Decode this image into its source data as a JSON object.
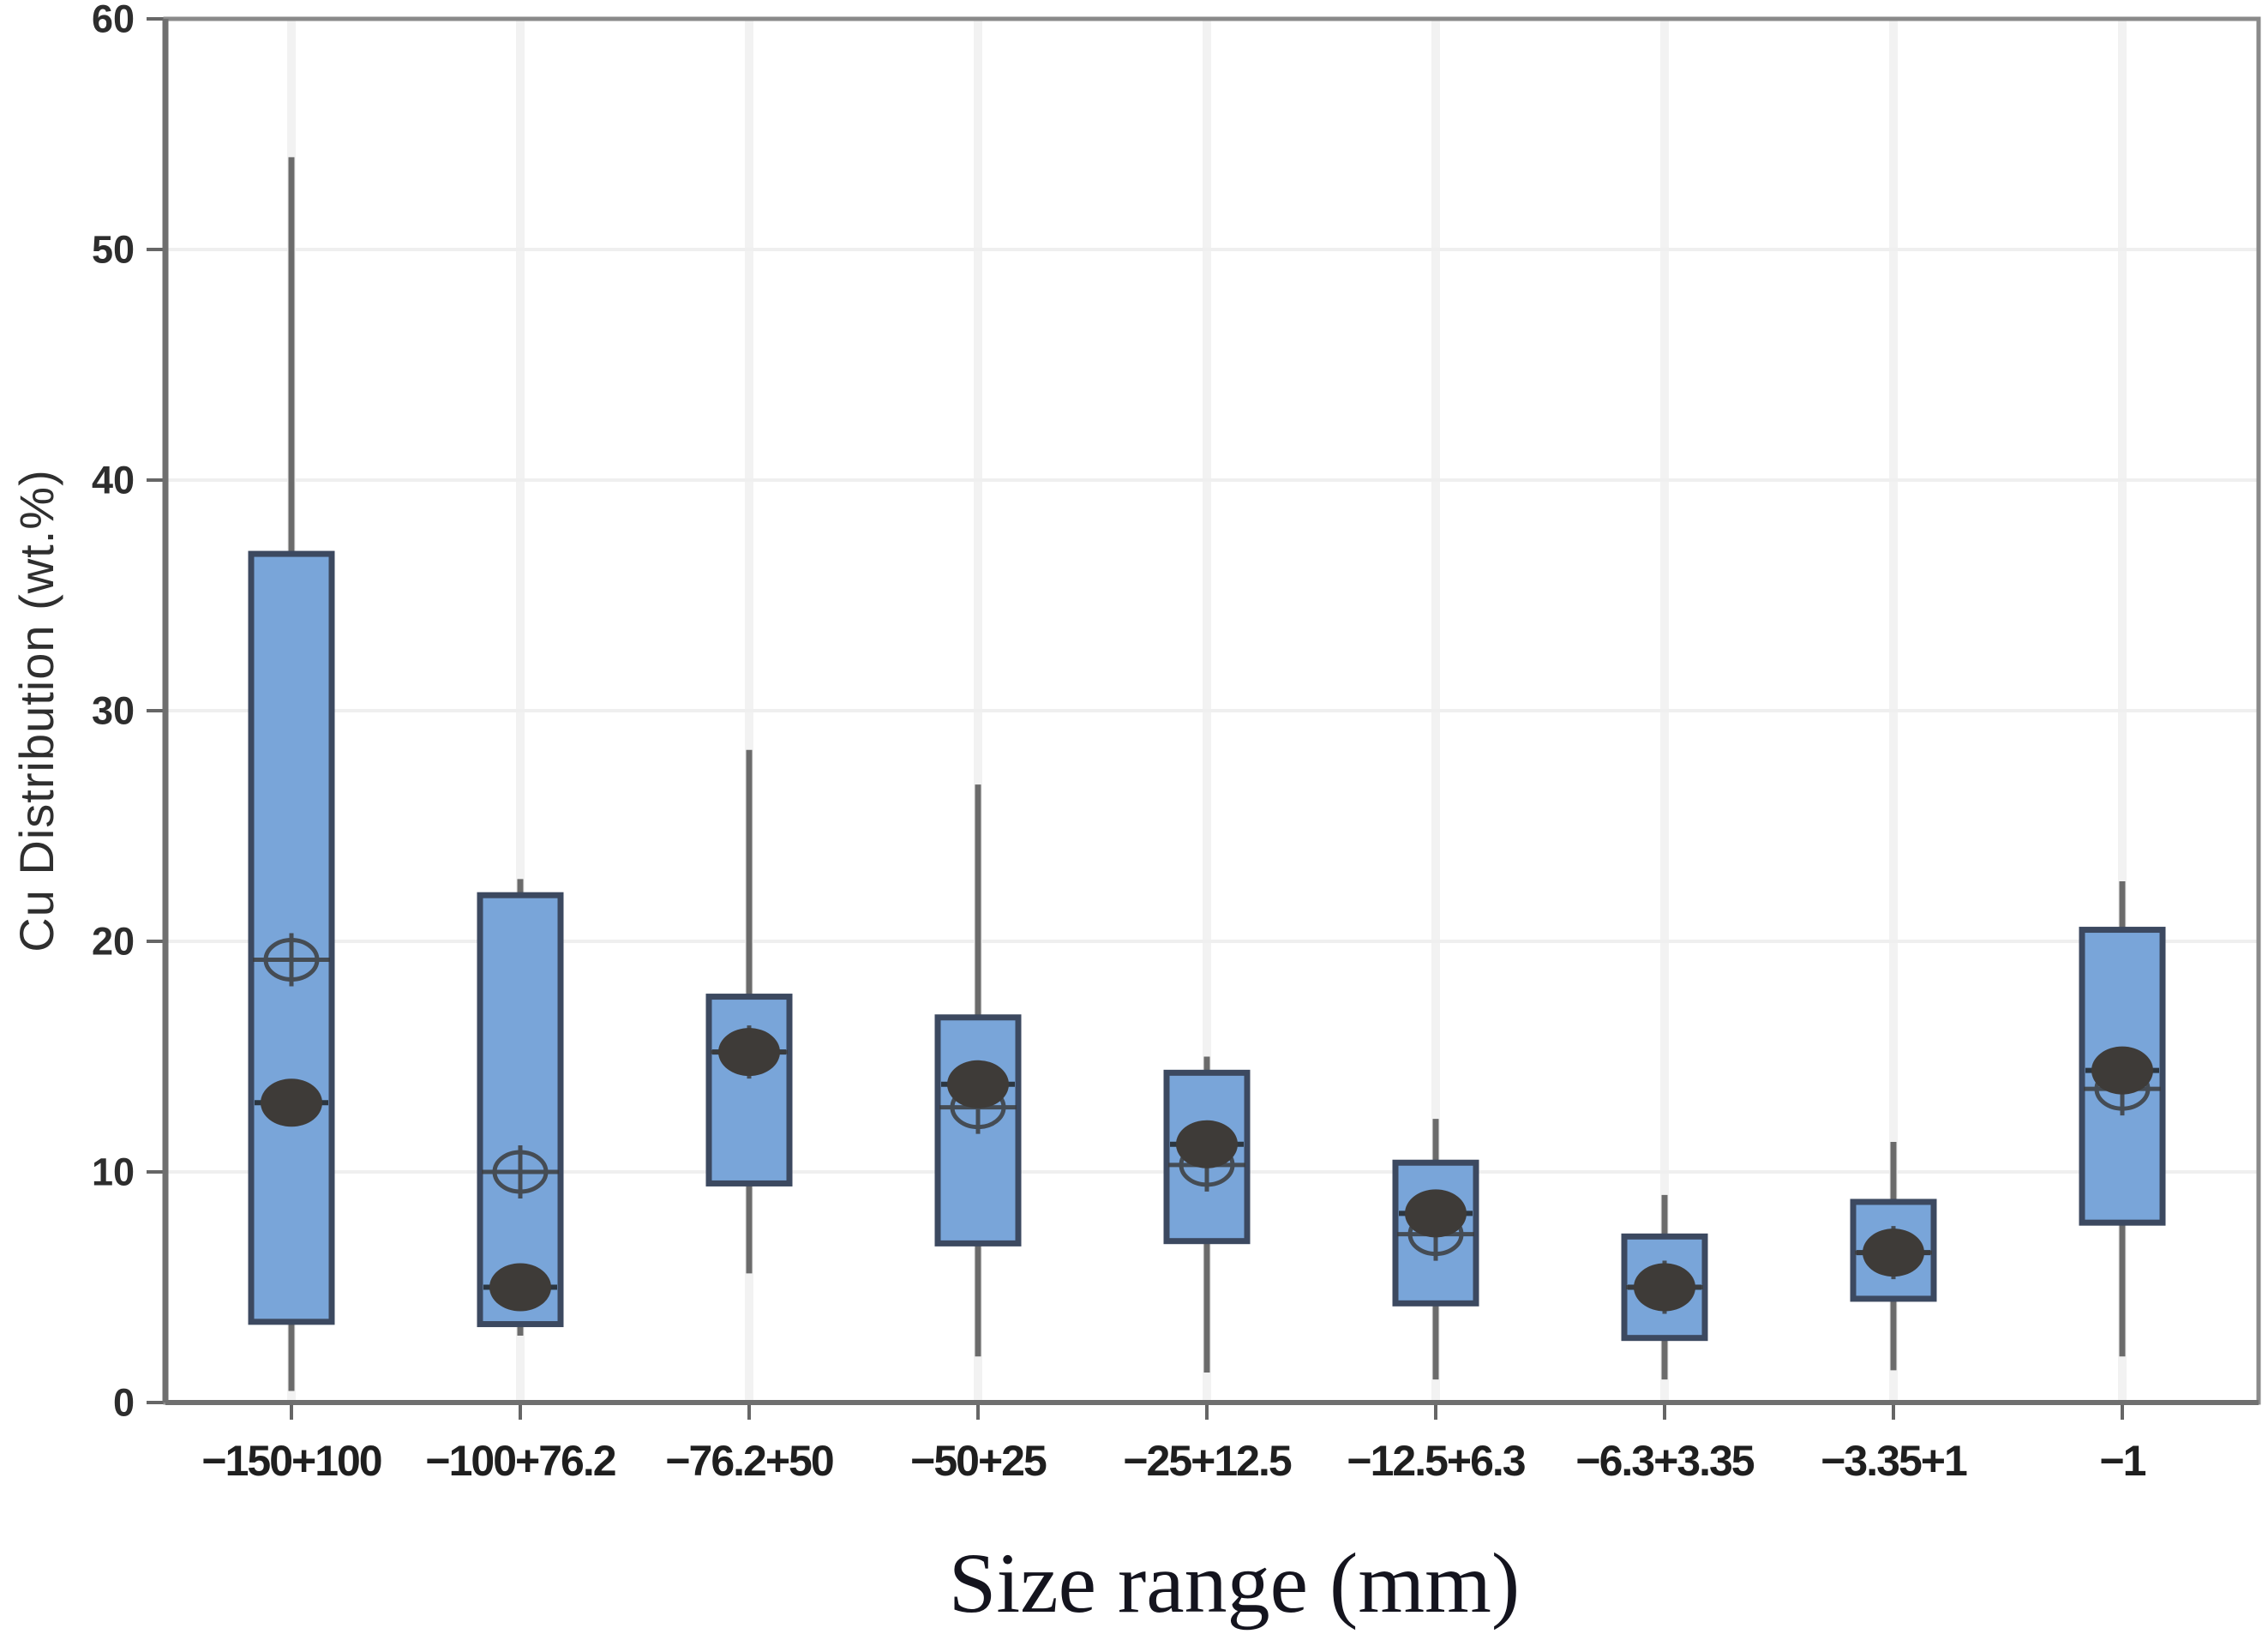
{
  "chart_data": {
    "type": "boxplot",
    "title": "",
    "xlabel": "Size range (mm)",
    "ylabel": "Cu Distribution (wt.%)",
    "ylim": [
      0,
      60
    ],
    "yticks": [
      0,
      10,
      20,
      30,
      40,
      50,
      60
    ],
    "grid": "light-horizontal-and-vertical",
    "legend": "none",
    "marker_glyphs": {
      "filled_dot": "median",
      "crosshair_circle": "mean"
    },
    "categories": [
      "−150+100",
      "−100+76.2",
      "−76.2+50",
      "−50+25",
      "−25+12.5",
      "−12.5+6.3",
      "−6.3+3.35",
      "−3.35+1",
      "−1"
    ],
    "series": [
      {
        "category": "−150+100",
        "whisker_low": 0.5,
        "q1": 3.5,
        "median": 13.0,
        "q3": 36.8,
        "whisker_high": 54.0,
        "mean": 19.2
      },
      {
        "category": "−100+76.2",
        "whisker_low": 2.9,
        "q1": 3.4,
        "median": 5.0,
        "q3": 22.0,
        "whisker_high": 22.7,
        "mean": 10.0
      },
      {
        "category": "−76.2+50",
        "whisker_low": 5.6,
        "q1": 9.5,
        "median": 15.2,
        "q3": 17.6,
        "whisker_high": 28.3,
        "mean": 15.2
      },
      {
        "category": "−50+25",
        "whisker_low": 2.0,
        "q1": 6.9,
        "median": 13.8,
        "q3": 16.7,
        "whisker_high": 26.8,
        "mean": 12.8
      },
      {
        "category": "−25+12.5",
        "whisker_low": 1.3,
        "q1": 7.0,
        "median": 11.2,
        "q3": 14.3,
        "whisker_high": 15.0,
        "mean": 10.3
      },
      {
        "category": "−12.5+6.3",
        "whisker_low": 1.0,
        "q1": 4.3,
        "median": 8.2,
        "q3": 10.4,
        "whisker_high": 12.3,
        "mean": 7.3
      },
      {
        "category": "−6.3+3.35",
        "whisker_low": 1.0,
        "q1": 2.8,
        "median": 5.0,
        "q3": 7.2,
        "whisker_high": 9.0,
        "mean": 5.0
      },
      {
        "category": "−3.35+1",
        "whisker_low": 1.4,
        "q1": 4.5,
        "median": 6.5,
        "q3": 8.7,
        "whisker_high": 11.3,
        "mean": 6.5
      },
      {
        "category": "−1",
        "whisker_low": 2.0,
        "q1": 7.8,
        "median": 14.4,
        "q3": 20.5,
        "whisker_high": 22.6,
        "mean": 13.6
      }
    ]
  },
  "colors": {
    "background": "#ffffff",
    "box_fill": "#79a5d9",
    "box_border": "#3c4960",
    "whisker": "#6b6b6b",
    "median_line": "#2c3640",
    "median_dot": "#3e3b38",
    "mean_marker": "#3d3d3d",
    "gridline": "#efefef",
    "vgridline": "#f2f2f2",
    "frame": "#8a8a8a",
    "tick_mark": "#666666",
    "tick_label": "#2d2d2d",
    "axis_title": "#14141e"
  }
}
